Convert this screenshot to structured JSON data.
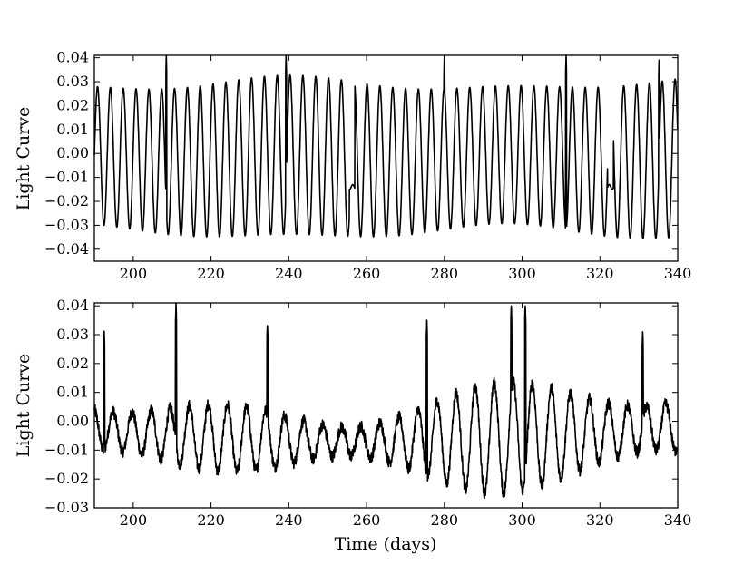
{
  "chart_data": [
    {
      "type": "line",
      "title": "",
      "xlabel": "",
      "ylabel": "Light Curve",
      "xlim": [
        190,
        340
      ],
      "ylim": [
        -0.045,
        0.041
      ],
      "xticks": [
        200,
        220,
        240,
        260,
        280,
        300,
        320,
        340
      ],
      "yticks": [
        -0.04,
        -0.03,
        -0.02,
        -0.01,
        0.0,
        0.01,
        0.02,
        0.03,
        0.04
      ],
      "ytick_labels": [
        "−0.04",
        "−0.03",
        "−0.02",
        "−0.01",
        "0.00",
        "0.01",
        "0.02",
        "0.03",
        "0.04"
      ],
      "series": [
        {
          "color": "#000000",
          "description": "quasi-periodic oscillation, period ~3.3 days, amplitude ~0.032 with sharp spikes and a gap near 256-258 days",
          "period": 3.3,
          "amplitude": 0.032,
          "spikes": [
            [
              208.5,
              0.041
            ],
            [
              239.3,
              0.041
            ],
            [
              280.0,
              0.041
            ],
            [
              311.3,
              0.041
            ],
            [
              335.2,
              0.039
            ]
          ],
          "gaps": [
            [
              255.6,
              257.0
            ],
            [
              322.0,
              323.5
            ]
          ]
        }
      ]
    },
    {
      "type": "line",
      "title": "",
      "xlabel": "Time (days)",
      "ylabel": "Light Curve",
      "xlim": [
        190,
        340
      ],
      "ylim": [
        -0.03,
        0.041
      ],
      "xticks": [
        200,
        220,
        240,
        260,
        280,
        300,
        320,
        340
      ],
      "yticks": [
        -0.03,
        -0.02,
        -0.01,
        0.0,
        0.01,
        0.02,
        0.03,
        0.04
      ],
      "ytick_labels": [
        "−0.03",
        "−0.02",
        "−0.01",
        "0.00",
        "0.01",
        "0.02",
        "0.03",
        "0.04"
      ],
      "series": [
        {
          "color": "#000000",
          "description": "noisy quasi-periodic oscillation, period ~4.9 days, amplitude varying 0.008-0.022 with sharp spikes",
          "period": 4.9,
          "spikes": [
            [
              192.5,
              0.032
            ],
            [
              211.0,
              0.041
            ],
            [
              234.5,
              0.034
            ],
            [
              275.5,
              0.035
            ],
            [
              297.2,
              0.041
            ],
            [
              300.8,
              0.041
            ],
            [
              331.0,
              0.031
            ]
          ]
        }
      ]
    }
  ],
  "x_tick_labels": [
    "200",
    "220",
    "240",
    "260",
    "280",
    "300",
    "320",
    "340"
  ],
  "xlabel": "Time (days)",
  "ylabel": "Light Curve"
}
